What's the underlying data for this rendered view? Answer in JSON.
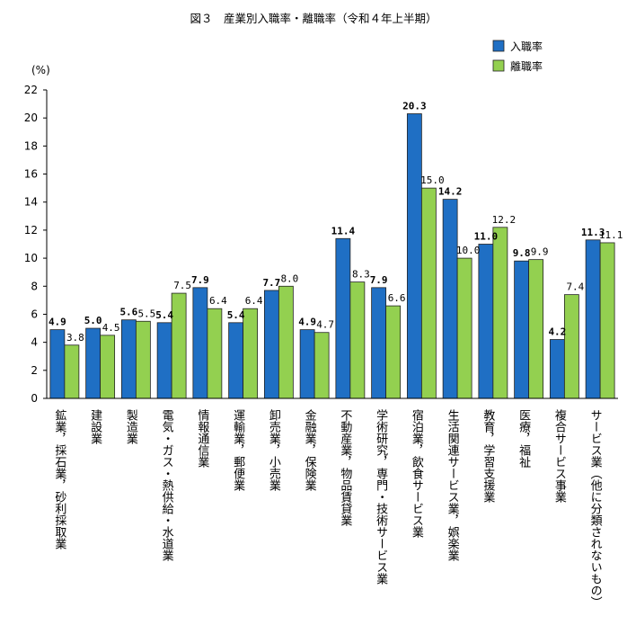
{
  "title": "図３　産業別入職率・離職率（令和４年上半期）",
  "chart_data": {
    "type": "bar",
    "ylabel": "(%)",
    "ylim": [
      0,
      22
    ],
    "yticks": [
      0,
      2,
      4,
      6,
      8,
      10,
      12,
      14,
      16,
      18,
      20,
      22
    ],
    "grid": false,
    "legend_position": "top-right",
    "categories": [
      "鉱業，採石業，砂利採取業",
      "建設業",
      "製造業",
      "電気・ガス・熱供給・水道業",
      "情報通信業",
      "運輸業，郵便業",
      "卸売業，小売業",
      "金融業，保険業",
      "不動産業，物品賃貸業",
      "学術研究，専門・技術サービス業",
      "宿泊業，飲食サービス業",
      "生活関連サービス業，娯楽業",
      "教育，学習支援業",
      "医療，福祉",
      "複合サービス事業",
      "サービス業（他に分類されないもの）"
    ],
    "series": [
      {
        "name": "入職率",
        "color": "#1f6fc4",
        "values": [
          4.9,
          5.0,
          5.6,
          5.4,
          7.9,
          5.4,
          7.7,
          4.9,
          11.4,
          7.9,
          20.3,
          14.2,
          11.0,
          9.8,
          4.2,
          11.3
        ],
        "labels": [
          "4.9",
          "5.0",
          "5.6",
          "5.4",
          "7.9",
          "5.4",
          "7.7",
          "4.9",
          "11.4",
          "7.9",
          "20.3",
          "14.2",
          "11.0",
          "9.8",
          "4.2",
          "11.3"
        ]
      },
      {
        "name": "離職率",
        "color": "#93d050",
        "values": [
          3.8,
          4.5,
          5.5,
          7.5,
          6.4,
          6.4,
          8.0,
          4.7,
          8.3,
          6.6,
          15.0,
          10.0,
          12.2,
          9.9,
          7.4,
          11.1
        ],
        "labels": [
          "3.8",
          "4.5",
          "5.5",
          "7.5",
          "6.4",
          "6.4",
          "8.0",
          "4.7",
          "8.3",
          "6.6",
          "15.0",
          "10.0",
          "12.2",
          "9.9",
          "7.4",
          "11.1"
        ]
      }
    ]
  }
}
